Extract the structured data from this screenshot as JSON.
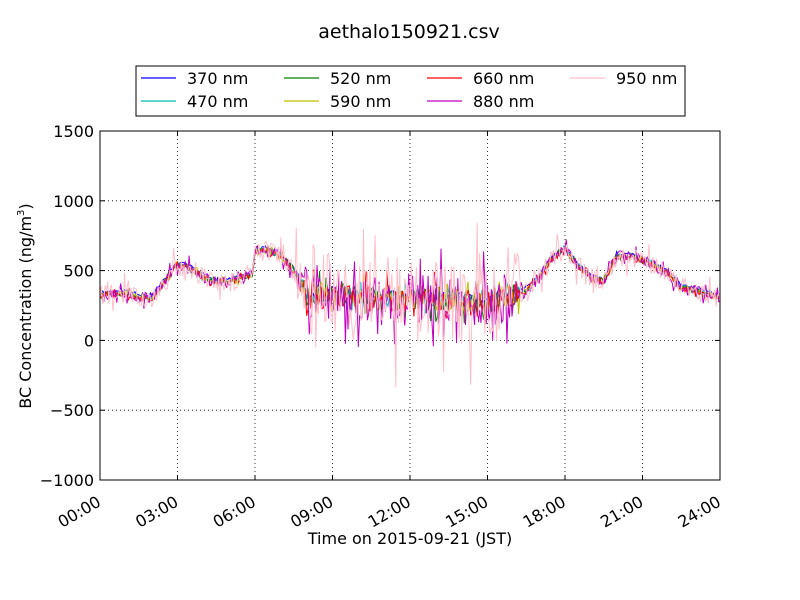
{
  "chart_data": {
    "type": "line",
    "title": "aethalo150921.csv",
    "xlabel": "Time on 2015-09-21 (JST)",
    "ylabel": "BC Concentration (ng/m",
    "ylabel_superscript": "3",
    "ylabel_suffix": ")",
    "xlim": [
      0,
      24
    ],
    "ylim": [
      -1000,
      1500
    ],
    "grid": true,
    "legend_position": "top-center",
    "x_ticks": [
      0,
      3,
      6,
      9,
      12,
      15,
      18,
      21,
      24
    ],
    "x_tick_labels": [
      "00:00",
      "03:00",
      "06:00",
      "09:00",
      "12:00",
      "15:00",
      "18:00",
      "21:00",
      "24:00"
    ],
    "y_ticks": [
      -1000,
      -500,
      0,
      500,
      1000,
      1500
    ],
    "y_tick_labels": [
      "−1000",
      "−500",
      "0",
      "500",
      "1000",
      "1500"
    ],
    "baseline": {
      "x": [
        0,
        0.5,
        1.0,
        1.5,
        2.0,
        2.5,
        3.0,
        3.5,
        4.0,
        4.5,
        5.0,
        5.5,
        5.9,
        6.0,
        6.5,
        7.0,
        7.5,
        8.0,
        8.5,
        9.0,
        9.5,
        10.0,
        10.5,
        11.0,
        11.5,
        12.0,
        12.5,
        13.0,
        13.5,
        14.0,
        14.5,
        15.0,
        15.5,
        16.0,
        16.5,
        17.0,
        17.5,
        18.0,
        18.5,
        19.0,
        19.5,
        20.0,
        20.5,
        21.0,
        21.5,
        22.0,
        22.5,
        23.0,
        23.5,
        24.0
      ],
      "y": [
        330,
        330,
        340,
        310,
        300,
        420,
        540,
        520,
        450,
        420,
        420,
        450,
        470,
        640,
        640,
        600,
        500,
        320,
        330,
        330,
        330,
        310,
        300,
        300,
        300,
        300,
        300,
        300,
        290,
        280,
        270,
        270,
        300,
        320,
        360,
        450,
        580,
        650,
        530,
        450,
        420,
        600,
        600,
        580,
        530,
        480,
        380,
        360,
        330,
        310
      ]
    },
    "series": [
      {
        "name": "370 nm",
        "color": "#0000ff",
        "noise": 40,
        "seed": 11,
        "offset": 20,
        "clamp": [
          150,
          750
        ]
      },
      {
        "name": "470 nm",
        "color": "#00bfbf",
        "noise": 60,
        "seed": 23,
        "offset": 5,
        "clamp": [
          -150,
          800
        ]
      },
      {
        "name": "520 nm",
        "color": "#008000",
        "noise": 80,
        "seed": 37,
        "offset": 0,
        "clamp": [
          -250,
          700
        ]
      },
      {
        "name": "590 nm",
        "color": "#bfbf00",
        "noise": 90,
        "seed": 41,
        "offset": 0,
        "clamp": [
          -250,
          750
        ]
      },
      {
        "name": "660 nm",
        "color": "#ff0000",
        "noise": 95,
        "seed": 53,
        "offset": -5,
        "clamp": [
          -260,
          800
        ]
      },
      {
        "name": "880 nm",
        "color": "#bf00bf",
        "noise": 180,
        "seed": 67,
        "offset": 0,
        "clamp": [
          -470,
          1140
        ]
      },
      {
        "name": "950 nm",
        "color": "#ffc0cb",
        "noise": 330,
        "seed": 79,
        "offset": 0,
        "clamp": [
          -810,
          1100
        ]
      }
    ]
  }
}
